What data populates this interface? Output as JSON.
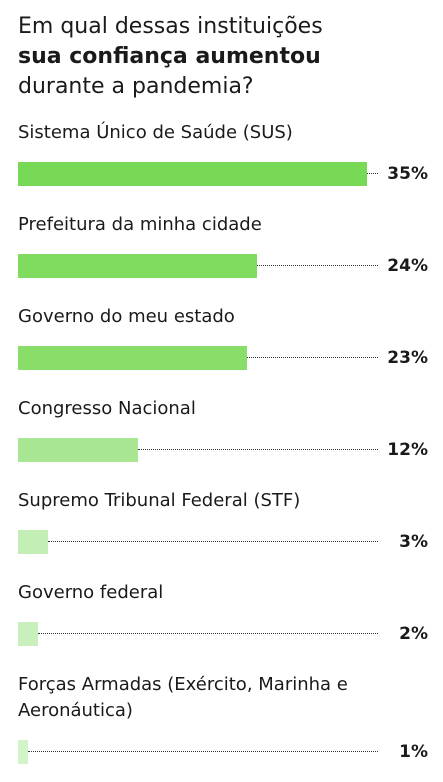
{
  "chart_data": {
    "type": "bar",
    "orientation": "horizontal",
    "title_lines": [
      "Em qual dessas instituições",
      "sua confiança aumentou",
      "durante a pandemia?"
    ],
    "title_bold_line": 1,
    "categories": [
      "Sistema Único de Saúde (SUS)",
      "Prefeitura da minha cidade",
      "Governo do meu estado",
      "Congresso Nacional",
      "Supremo Tribunal Federal (STF)",
      "Governo federal",
      "Forças Armadas (Exército, Marinha e Aeronáutica)"
    ],
    "values": [
      35,
      24,
      23,
      12,
      3,
      2,
      1
    ],
    "value_labels": [
      "35%",
      "24%",
      "23%",
      "12%",
      "3%",
      "2%",
      "1%"
    ],
    "colors": [
      "#78d957",
      "#80dc5e",
      "#88de68",
      "#a8e694",
      "#c3eeb5",
      "#c9f0bc",
      "#d3f3c8"
    ]
  }
}
